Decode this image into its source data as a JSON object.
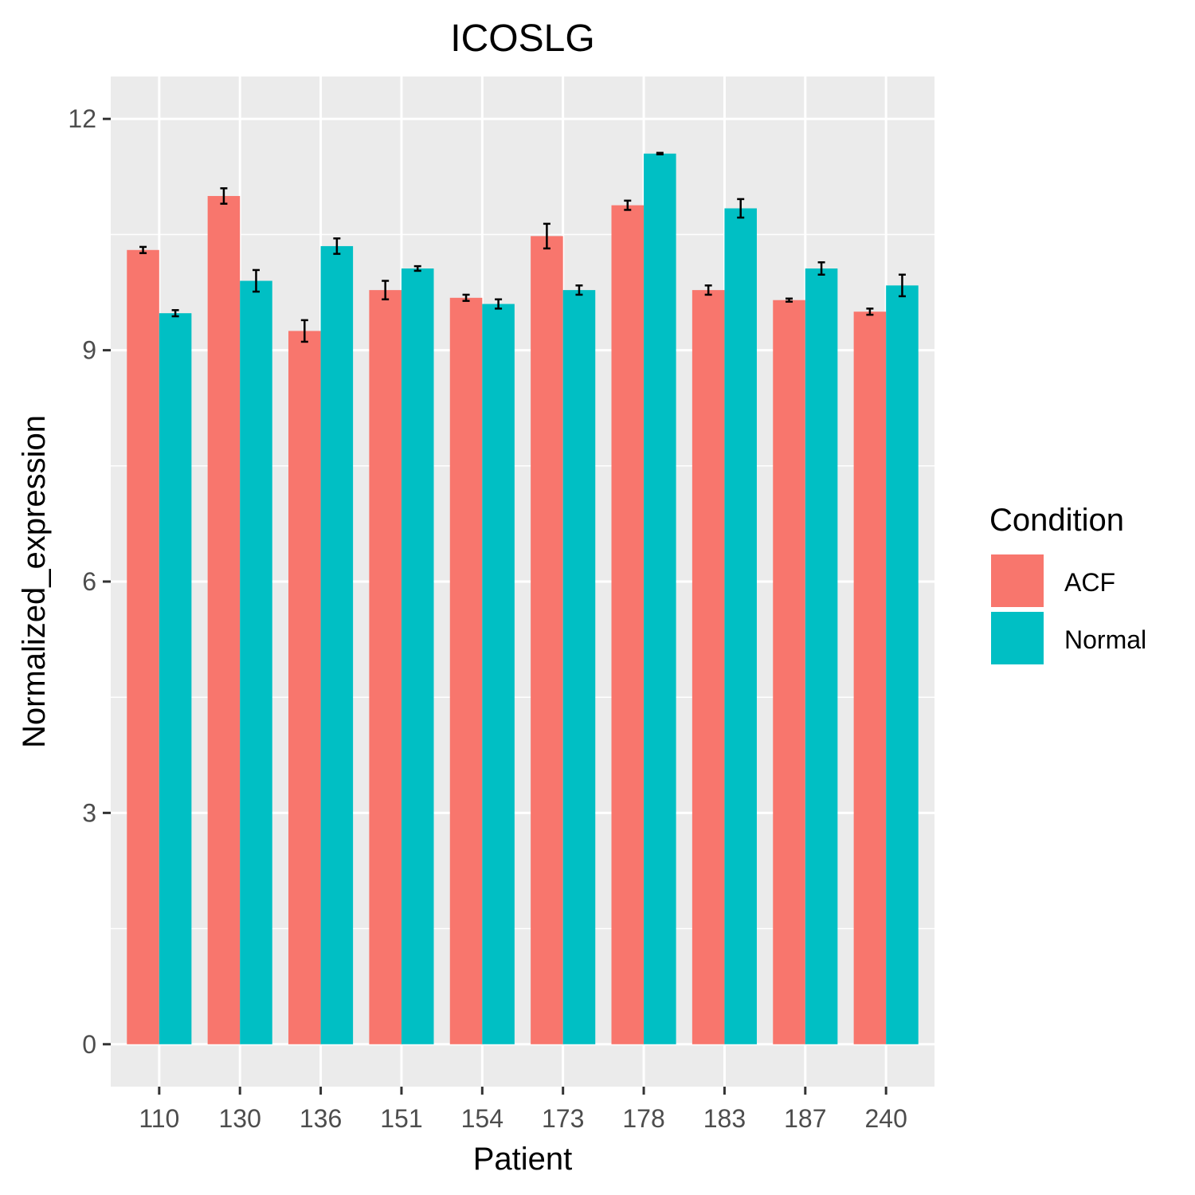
{
  "chart_data": {
    "type": "bar",
    "title": "ICOSLG",
    "xlabel": "Patient",
    "ylabel": "Normalized_expression",
    "categories": [
      "110",
      "130",
      "136",
      "151",
      "154",
      "173",
      "178",
      "183",
      "187",
      "240"
    ],
    "series": [
      {
        "name": "ACF",
        "color": "#F8766D",
        "values": [
          10.3,
          11.0,
          9.25,
          9.78,
          9.68,
          10.48,
          10.88,
          9.78,
          9.65,
          9.5
        ],
        "error": [
          0.04,
          0.1,
          0.14,
          0.12,
          0.04,
          0.16,
          0.06,
          0.06,
          0.02,
          0.04
        ]
      },
      {
        "name": "Normal",
        "color": "#00BFC4",
        "values": [
          9.48,
          9.9,
          10.35,
          10.06,
          9.6,
          9.78,
          11.55,
          10.84,
          10.06,
          9.84
        ],
        "error": [
          0.04,
          0.14,
          0.1,
          0.03,
          0.06,
          0.06,
          0.01,
          0.12,
          0.08,
          0.14
        ]
      }
    ],
    "ylim": [
      -0.55,
      12.55
    ],
    "yticks": [
      0,
      3,
      6,
      9,
      12
    ],
    "yticks_labels": [
      "0",
      "3",
      "6",
      "9",
      "12"
    ],
    "grid": true,
    "legend": {
      "title": "Condition",
      "position": "right",
      "items": [
        "ACF",
        "Normal"
      ]
    },
    "colors": {
      "panel_background": "#EBEBEB",
      "grid": "#FFFFFF",
      "error_bar": "#000000"
    }
  }
}
